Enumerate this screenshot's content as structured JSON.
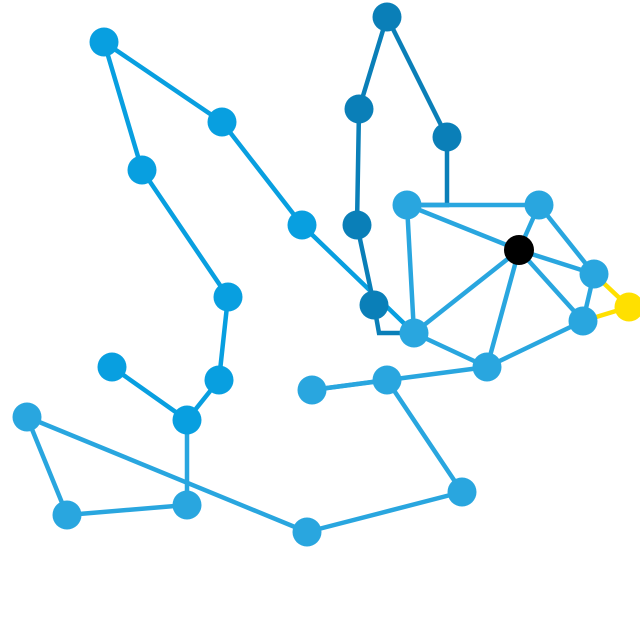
{
  "diagram": {
    "type": "network-graph",
    "colors": {
      "background": "#ffffff",
      "light_blue": "#29a6df",
      "mid_blue": "#089fe0",
      "dark_blue": "#0a7fb8",
      "black": "#000000",
      "yellow": "#ffe000"
    },
    "nodes": [
      {
        "id": "n1",
        "color": "mid_blue"
      },
      {
        "id": "n2",
        "color": "mid_blue"
      },
      {
        "id": "n3",
        "color": "mid_blue"
      },
      {
        "id": "n4",
        "color": "mid_blue"
      },
      {
        "id": "n5",
        "color": "mid_blue"
      },
      {
        "id": "n6",
        "color": "mid_blue"
      },
      {
        "id": "n7",
        "color": "mid_blue"
      },
      {
        "id": "n8",
        "color": "mid_blue"
      },
      {
        "id": "d1",
        "color": "dark_blue"
      },
      {
        "id": "d2",
        "color": "dark_blue"
      },
      {
        "id": "d3",
        "color": "dark_blue"
      },
      {
        "id": "d4",
        "color": "dark_blue"
      },
      {
        "id": "d5",
        "color": "dark_blue"
      },
      {
        "id": "h1",
        "color": "light_blue"
      },
      {
        "id": "h2",
        "color": "light_blue"
      },
      {
        "id": "hub",
        "color": "black"
      },
      {
        "id": "h3",
        "color": "light_blue"
      },
      {
        "id": "h4",
        "color": "light_blue"
      },
      {
        "id": "h5",
        "color": "light_blue"
      },
      {
        "id": "h6",
        "color": "light_blue"
      },
      {
        "id": "y1",
        "color": "yellow"
      },
      {
        "id": "l1",
        "color": "light_blue"
      },
      {
        "id": "l2",
        "color": "light_blue"
      },
      {
        "id": "l3",
        "color": "light_blue"
      },
      {
        "id": "l4",
        "color": "light_blue"
      },
      {
        "id": "l5",
        "color": "light_blue"
      },
      {
        "id": "l6",
        "color": "light_blue"
      },
      {
        "id": "l7",
        "color": "light_blue"
      }
    ],
    "edges": [
      {
        "from": "n1",
        "to": "n2",
        "color": "mid_blue"
      },
      {
        "from": "n2",
        "to": "n4",
        "color": "mid_blue"
      },
      {
        "from": "n4",
        "to": "h4",
        "color": "mid_blue"
      },
      {
        "from": "n1",
        "to": "n3",
        "color": "mid_blue"
      },
      {
        "from": "n3",
        "to": "n5",
        "color": "mid_blue"
      },
      {
        "from": "n5",
        "to": "n6",
        "color": "mid_blue"
      },
      {
        "from": "n6",
        "to": "n7",
        "color": "mid_blue"
      },
      {
        "from": "n7",
        "to": "n8",
        "color": "mid_blue"
      },
      {
        "from": "d1",
        "to": "d2",
        "color": "dark_blue"
      },
      {
        "from": "d1",
        "to": "d3",
        "color": "dark_blue"
      },
      {
        "from": "d2",
        "to": "d4",
        "color": "dark_blue"
      },
      {
        "from": "d4",
        "to": "d5",
        "color": "dark_blue"
      },
      {
        "from": "d5",
        "to": "h4",
        "color": "dark_blue"
      },
      {
        "from": "d3",
        "to": "h1",
        "color": "dark_blue"
      },
      {
        "from": "h1",
        "to": "h2",
        "color": "light_blue"
      },
      {
        "from": "h1",
        "to": "hub",
        "color": "light_blue"
      },
      {
        "from": "h1",
        "to": "h4",
        "color": "light_blue"
      },
      {
        "from": "h2",
        "to": "hub",
        "color": "light_blue"
      },
      {
        "from": "h2",
        "to": "h3",
        "color": "light_blue"
      },
      {
        "from": "hub",
        "to": "h3",
        "color": "light_blue"
      },
      {
        "from": "hub",
        "to": "h6",
        "color": "light_blue"
      },
      {
        "from": "hub",
        "to": "h4",
        "color": "light_blue"
      },
      {
        "from": "hub",
        "to": "h5",
        "color": "light_blue"
      },
      {
        "from": "h3",
        "to": "h6",
        "color": "light_blue"
      },
      {
        "from": "h6",
        "to": "h5",
        "color": "light_blue"
      },
      {
        "from": "h4",
        "to": "h5",
        "color": "light_blue"
      },
      {
        "from": "h3",
        "to": "y1",
        "color": "yellow"
      },
      {
        "from": "h6",
        "to": "y1",
        "color": "yellow"
      },
      {
        "from": "h5",
        "to": "l7",
        "color": "light_blue"
      },
      {
        "from": "l7",
        "to": "l6",
        "color": "light_blue"
      },
      {
        "from": "l6",
        "to": "l5",
        "color": "light_blue"
      },
      {
        "from": "l5",
        "to": "l4",
        "color": "light_blue"
      },
      {
        "from": "l4",
        "to": "l1",
        "color": "light_blue"
      },
      {
        "from": "l1",
        "to": "l2",
        "color": "light_blue"
      },
      {
        "from": "l2",
        "to": "l3",
        "color": "light_blue"
      },
      {
        "from": "l3",
        "to": "n7",
        "color": "light_blue"
      }
    ]
  }
}
